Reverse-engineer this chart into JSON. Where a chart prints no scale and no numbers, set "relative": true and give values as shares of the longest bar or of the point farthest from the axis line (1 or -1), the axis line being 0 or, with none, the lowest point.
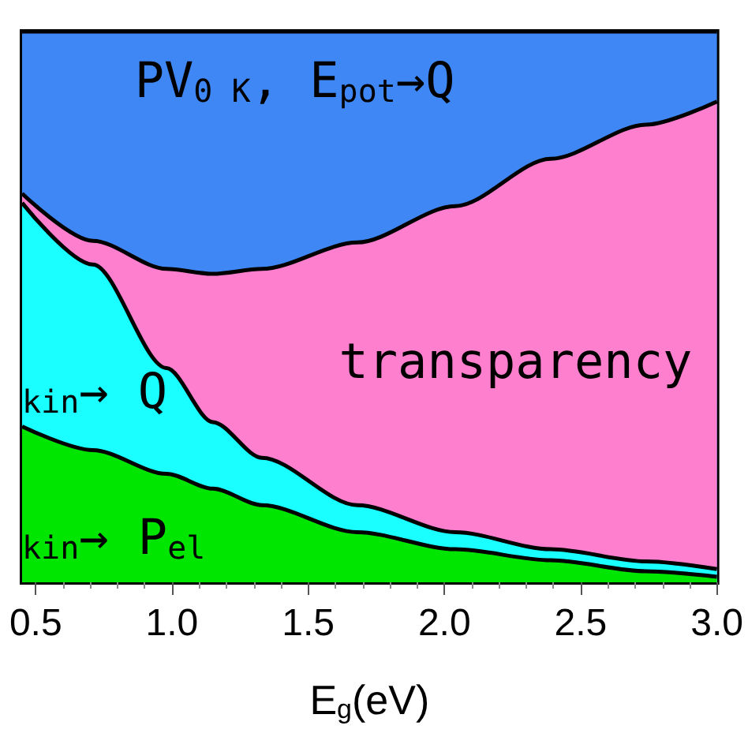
{
  "chart_data": {
    "type": "area",
    "stacked": true,
    "relative": true,
    "xlabel": "E$_{g}$(eV)",
    "x": [
      0.45,
      0.71,
      0.98,
      1.15,
      1.33,
      1.68,
      2.04,
      2.39,
      2.74,
      3.0
    ],
    "xlim": [
      0.45,
      3.0
    ],
    "xticks": [
      {
        "value": 0.5,
        "label": "0.5"
      },
      {
        "value": 1.0,
        "label": "1.0"
      },
      {
        "value": 1.5,
        "label": "1.5"
      },
      {
        "value": 2.0,
        "label": "2.0"
      },
      {
        "value": 2.5,
        "label": "2.5"
      },
      {
        "value": 3.0,
        "label": "3.0"
      }
    ],
    "series": [
      {
        "color": "#00e600",
        "values": [
          0.283,
          0.24,
          0.197,
          0.17,
          0.14,
          0.091,
          0.06,
          0.04,
          0.02,
          0.01
        ]
      },
      {
        "color": "#1affff",
        "values": [
          0.406,
          0.337,
          0.192,
          0.121,
          0.086,
          0.049,
          0.031,
          0.02,
          0.018,
          0.014
        ]
      },
      {
        "color": "#ff7fcf",
        "values": [
          0.017,
          0.043,
          0.18,
          0.269,
          0.343,
          0.477,
          0.592,
          0.709,
          0.793,
          0.849
        ]
      },
      {
        "color": "#3f87f5",
        "values": [
          0.294,
          0.38,
          0.431,
          0.44,
          0.431,
          0.383,
          0.317,
          0.231,
          0.169,
          0.127
        ]
      }
    ],
    "annotations": [
      "PV$_{0 K}$, E$_{pot}$→Q",
      "transparency",
      "$_{kin}$→ Q",
      "$_{kin}$→ P$_{el}$"
    ]
  }
}
